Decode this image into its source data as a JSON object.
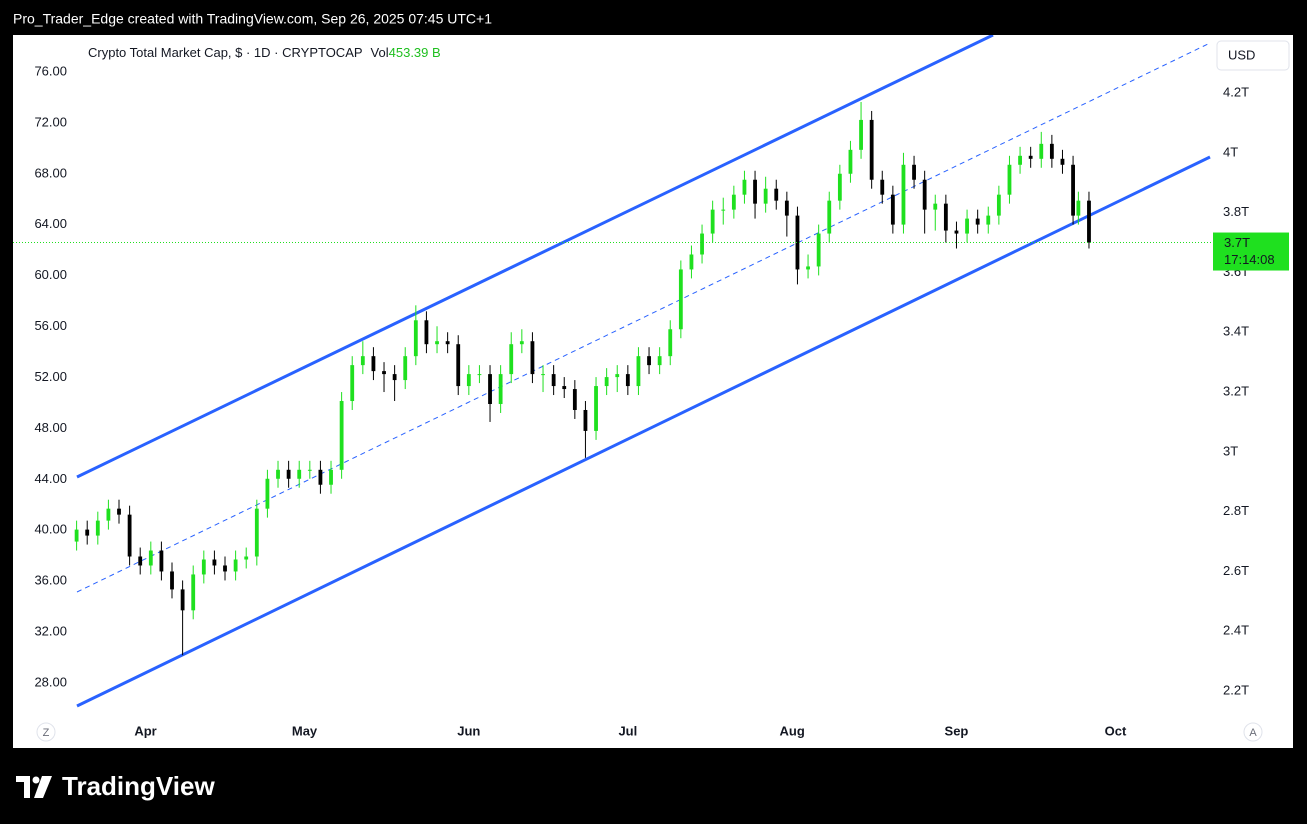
{
  "header": {
    "credit": "Pro_Trader_Edge created with TradingView.com, Sep 26, 2025 07:45 UTC+1"
  },
  "chart_data": {
    "type": "candlestick",
    "title": "Crypto Total Market Cap, $ · 1D · CRYPTOCAP",
    "volume_label": "Vol",
    "volume_value": "453.39 B",
    "currency": "USD",
    "last_price_label": "3.7T",
    "countdown": "17:14:08",
    "left_button": "Z",
    "right_button": "A",
    "up_color": "#1fe01f",
    "down_color": "#000000",
    "x": [
      78,
      80,
      82,
      84,
      86,
      88,
      90,
      92,
      94,
      96,
      98,
      100,
      102,
      104,
      106,
      108,
      110,
      112,
      114,
      116,
      118,
      120,
      122,
      124,
      126,
      128,
      130,
      132,
      134,
      136,
      138,
      140,
      142,
      144,
      146,
      148,
      150,
      152,
      154,
      156,
      158,
      160,
      162,
      164,
      166,
      168,
      170,
      172,
      174,
      176,
      178,
      180,
      182,
      184,
      186,
      188,
      190,
      192,
      194,
      196,
      198,
      200,
      202,
      204,
      206,
      208,
      210,
      212,
      214,
      216,
      218,
      220,
      222,
      224,
      226,
      228,
      230,
      232,
      234,
      236,
      238,
      240,
      242,
      244,
      246,
      248,
      250,
      252,
      254,
      256,
      258,
      260,
      262,
      264,
      266,
      267,
      269
    ],
    "open": [
      2.7,
      2.74,
      2.72,
      2.77,
      2.81,
      2.79,
      2.65,
      2.62,
      2.67,
      2.6,
      2.54,
      2.47,
      2.59,
      2.64,
      2.62,
      2.6,
      2.64,
      2.65,
      2.81,
      2.91,
      2.94,
      2.91,
      2.94,
      2.94,
      2.89,
      2.94,
      3.17,
      3.29,
      3.32,
      3.27,
      3.26,
      3.24,
      3.32,
      3.44,
      3.36,
      3.37,
      3.36,
      3.22,
      3.26,
      3.26,
      3.16,
      3.26,
      3.36,
      3.37,
      3.26,
      3.26,
      3.22,
      3.21,
      3.14,
      3.07,
      3.22,
      3.25,
      3.26,
      3.22,
      3.32,
      3.29,
      3.32,
      3.41,
      3.61,
      3.66,
      3.73,
      3.81,
      3.81,
      3.86,
      3.91,
      3.83,
      3.88,
      3.84,
      3.79,
      3.61,
      3.62,
      3.73,
      3.84,
      3.93,
      4.01,
      4.11,
      3.91,
      3.86,
      3.76,
      3.96,
      3.91,
      3.81,
      3.83,
      3.74,
      3.73,
      3.78,
      3.76,
      3.79,
      3.86,
      3.96,
      3.99,
      3.98,
      4.03,
      3.98,
      3.96,
      3.79,
      3.84
    ],
    "high": [
      2.77,
      2.77,
      2.8,
      2.84,
      2.84,
      2.82,
      2.68,
      2.7,
      2.7,
      2.63,
      2.57,
      2.62,
      2.67,
      2.67,
      2.65,
      2.67,
      2.68,
      2.84,
      2.94,
      2.97,
      2.97,
      2.97,
      2.97,
      2.97,
      2.97,
      3.2,
      3.32,
      3.37,
      3.35,
      3.3,
      3.29,
      3.35,
      3.49,
      3.47,
      3.42,
      3.4,
      3.39,
      3.29,
      3.29,
      3.29,
      3.29,
      3.4,
      3.41,
      3.4,
      3.29,
      3.29,
      3.25,
      3.24,
      3.17,
      3.25,
      3.28,
      3.29,
      3.29,
      3.35,
      3.35,
      3.35,
      3.44,
      3.64,
      3.69,
      3.76,
      3.84,
      3.85,
      3.89,
      3.94,
      3.94,
      3.92,
      3.91,
      3.87,
      3.82,
      3.66,
      3.76,
      3.87,
      3.96,
      4.04,
      4.17,
      4.14,
      3.94,
      3.89,
      4.0,
      3.99,
      3.94,
      3.86,
      3.86,
      3.77,
      3.81,
      3.81,
      3.82,
      3.89,
      3.99,
      4.02,
      4.02,
      4.07,
      4.06,
      4.01,
      3.99,
      3.87,
      3.87
    ],
    "low": [
      2.67,
      2.69,
      2.69,
      2.74,
      2.76,
      2.62,
      2.59,
      2.59,
      2.57,
      2.51,
      2.32,
      2.44,
      2.56,
      2.59,
      2.57,
      2.57,
      2.61,
      2.62,
      2.78,
      2.88,
      2.88,
      2.88,
      2.91,
      2.86,
      2.86,
      2.91,
      3.14,
      3.26,
      3.24,
      3.2,
      3.17,
      3.21,
      3.29,
      3.33,
      3.33,
      3.33,
      3.19,
      3.19,
      3.23,
      3.1,
      3.13,
      3.23,
      3.33,
      3.23,
      3.2,
      3.19,
      3.18,
      3.11,
      2.98,
      3.04,
      3.19,
      3.2,
      3.19,
      3.19,
      3.26,
      3.26,
      3.29,
      3.38,
      3.58,
      3.63,
      3.7,
      3.76,
      3.78,
      3.83,
      3.78,
      3.8,
      3.81,
      3.72,
      3.56,
      3.58,
      3.59,
      3.7,
      3.81,
      3.9,
      3.98,
      3.88,
      3.83,
      3.73,
      3.73,
      3.88,
      3.73,
      3.74,
      3.7,
      3.68,
      3.7,
      3.73,
      3.73,
      3.76,
      3.83,
      3.93,
      3.95,
      3.95,
      3.95,
      3.93,
      3.76,
      3.76,
      3.68
    ],
    "close": [
      2.74,
      2.72,
      2.77,
      2.81,
      2.79,
      2.65,
      2.62,
      2.67,
      2.6,
      2.54,
      2.47,
      2.59,
      2.64,
      2.62,
      2.6,
      2.64,
      2.65,
      2.81,
      2.91,
      2.94,
      2.91,
      2.94,
      2.94,
      2.89,
      2.94,
      3.17,
      3.29,
      3.32,
      3.27,
      3.26,
      3.24,
      3.32,
      3.44,
      3.36,
      3.37,
      3.36,
      3.22,
      3.26,
      3.26,
      3.16,
      3.26,
      3.36,
      3.37,
      3.26,
      3.26,
      3.22,
      3.21,
      3.14,
      3.07,
      3.22,
      3.25,
      3.26,
      3.22,
      3.32,
      3.29,
      3.32,
      3.41,
      3.61,
      3.66,
      3.73,
      3.81,
      3.81,
      3.86,
      3.91,
      3.83,
      3.88,
      3.84,
      3.79,
      3.61,
      3.62,
      3.73,
      3.84,
      3.93,
      4.01,
      4.11,
      3.91,
      3.86,
      3.76,
      3.96,
      3.91,
      3.81,
      3.83,
      3.74,
      3.73,
      3.78,
      3.76,
      3.79,
      3.86,
      3.96,
      3.99,
      3.98,
      4.03,
      3.98,
      3.96,
      3.79,
      3.84,
      3.7
    ],
    "xlim": [
      66,
      292.4
    ],
    "xticks": [
      {
        "value": 91,
        "label": "Apr"
      },
      {
        "value": 121,
        "label": "May"
      },
      {
        "value": 152,
        "label": "Jun"
      },
      {
        "value": 182,
        "label": "Jul"
      },
      {
        "value": 213,
        "label": "Aug"
      },
      {
        "value": 244,
        "label": "Sep"
      },
      {
        "value": 274,
        "label": "Oct"
      }
    ],
    "ylim": [
      2.12,
      4.394
    ],
    "yticks": [
      {
        "value": 2.2,
        "label": "2.2T"
      },
      {
        "value": 2.4,
        "label": "2.4T"
      },
      {
        "value": 2.6,
        "label": "2.6T"
      },
      {
        "value": 2.8,
        "label": "2.8T"
      },
      {
        "value": 3,
        "label": "3T"
      },
      {
        "value": 3.2,
        "label": "3.2T"
      },
      {
        "value": 3.4,
        "label": "3.4T"
      },
      {
        "value": 3.6,
        "label": "3.6T"
      },
      {
        "value": 3.8,
        "label": "3.8T"
      },
      {
        "value": 4,
        "label": "4T"
      },
      {
        "value": 4.2,
        "label": "4.2T"
      }
    ],
    "y2lim": [
      25.49,
      78.91
    ],
    "y2ticks": [
      {
        "value": 28,
        "label": "28.00"
      },
      {
        "value": 32,
        "label": "32.00"
      },
      {
        "value": 36,
        "label": "36.00"
      },
      {
        "value": 40,
        "label": "40.00"
      },
      {
        "value": 44,
        "label": "44.00"
      },
      {
        "value": 48,
        "label": "48.00"
      },
      {
        "value": 52,
        "label": "52.00"
      },
      {
        "value": 56,
        "label": "56.00"
      },
      {
        "value": 60,
        "label": "60.00"
      },
      {
        "value": 64,
        "label": "64.00"
      },
      {
        "value": 68,
        "label": "68.00"
      },
      {
        "value": 72,
        "label": "72.00"
      },
      {
        "value": 76,
        "label": "76.00"
      }
    ]
  },
  "footer": {
    "brand": "TradingView"
  }
}
